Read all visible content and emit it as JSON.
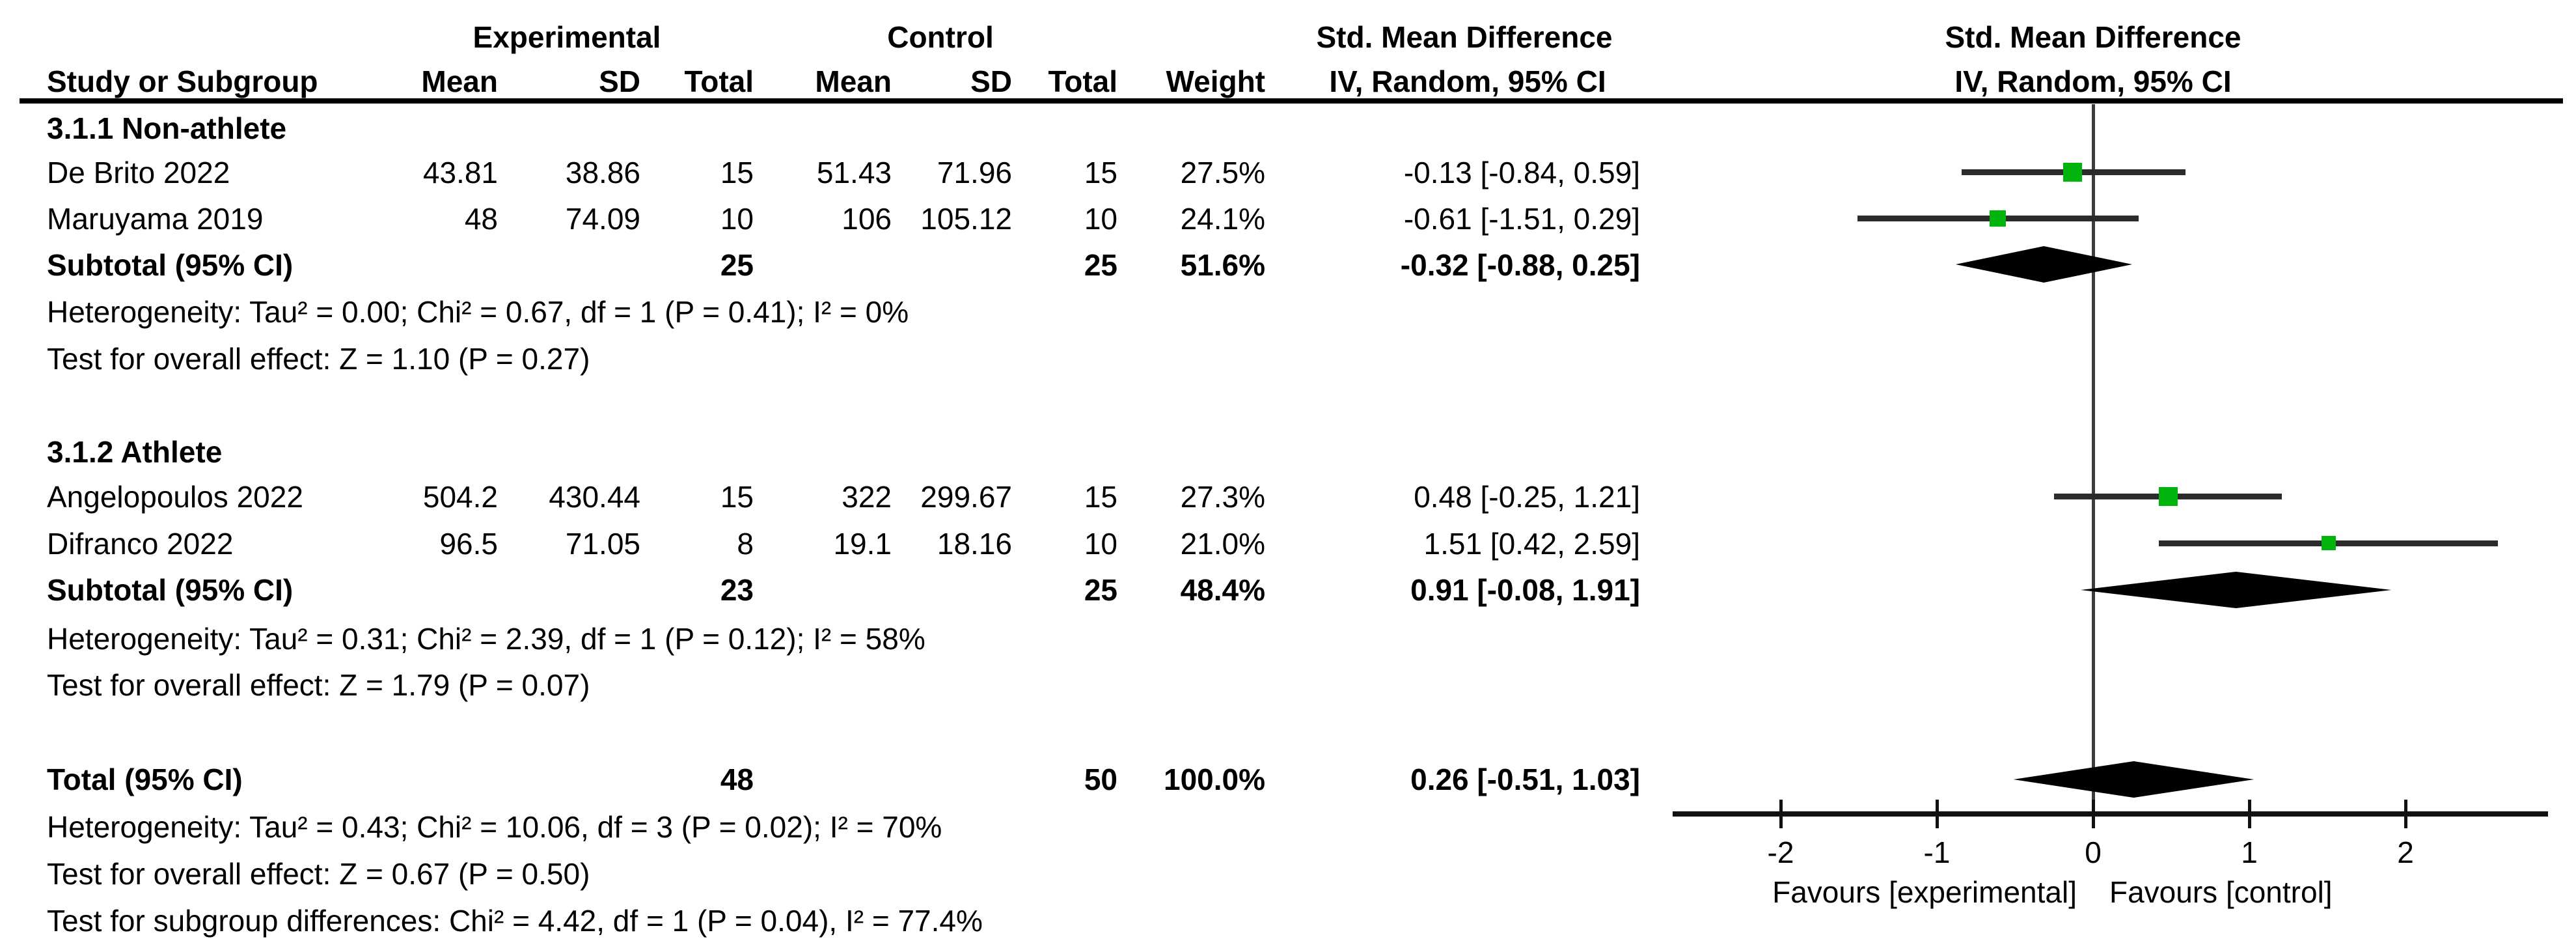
{
  "header": {
    "group_experimental": "Experimental",
    "group_control": "Control",
    "smd_left": "Std. Mean Difference",
    "smd_right": "Std. Mean Difference",
    "study": "Study or Subgroup",
    "mean1": "Mean",
    "sd1": "SD",
    "total1": "Total",
    "mean2": "Mean",
    "sd2": "SD",
    "total2": "Total",
    "weight": "Weight",
    "method_left": "IV, Random, 95% CI",
    "method_right": "IV, Random, 95% CI"
  },
  "groups": [
    {
      "title": "3.1.1 Non-athlete",
      "studies": [
        {
          "name": "De Brito 2022",
          "m1": "43.81",
          "sd1": "38.86",
          "t1": "15",
          "m2": "51.43",
          "sd2": "71.96",
          "t2": "15",
          "w": "27.5%",
          "est": "-0.13 [-0.84, 0.59]"
        },
        {
          "name": "Maruyama 2019",
          "m1": "48",
          "sd1": "74.09",
          "t1": "10",
          "m2": "106",
          "sd2": "105.12",
          "t2": "10",
          "w": "24.1%",
          "est": "-0.61 [-1.51, 0.29]"
        }
      ],
      "subtotal": {
        "label": "Subtotal (95% CI)",
        "t1": "25",
        "t2": "25",
        "w": "51.6%",
        "est": "-0.32 [-0.88, 0.25]"
      },
      "heterogeneity": "Heterogeneity: Tau² = 0.00; Chi² = 0.67, df = 1 (P = 0.41); I² = 0%",
      "overall_test": "Test for overall effect: Z = 1.10 (P = 0.27)"
    },
    {
      "title": "3.1.2 Athlete",
      "studies": [
        {
          "name": "Angelopoulos 2022",
          "m1": "504.2",
          "sd1": "430.44",
          "t1": "15",
          "m2": "322",
          "sd2": "299.67",
          "t2": "15",
          "w": "27.3%",
          "est": "0.48 [-0.25, 1.21]"
        },
        {
          "name": "Difranco 2022",
          "m1": "96.5",
          "sd1": "71.05",
          "t1": "8",
          "m2": "19.1",
          "sd2": "18.16",
          "t2": "10",
          "w": "21.0%",
          "est": "1.51 [0.42, 2.59]"
        }
      ],
      "subtotal": {
        "label": "Subtotal (95% CI)",
        "t1": "23",
        "t2": "25",
        "w": "48.4%",
        "est": "0.91 [-0.08, 1.91]"
      },
      "heterogeneity": "Heterogeneity: Tau² = 0.31; Chi² = 2.39, df = 1 (P = 0.12); I² = 58%",
      "overall_test": "Test for overall effect: Z = 1.79 (P = 0.07)"
    }
  ],
  "total": {
    "label": "Total (95% CI)",
    "t1": "48",
    "t2": "50",
    "w": "100.0%",
    "est": "0.26 [-0.51, 1.03]",
    "heterogeneity": "Heterogeneity: Tau² = 0.43; Chi² = 10.06, df = 3 (P = 0.02); I² = 70%",
    "overall_test": "Test for overall effect: Z = 0.67 (P = 0.50)",
    "subgroup_test": "Test for subgroup differences: Chi² = 4.42, df = 1 (P = 0.04), I² = 77.4%"
  },
  "axis": {
    "ticks": [
      "-2",
      "-1",
      "0",
      "1",
      "2"
    ],
    "favours_left": "Favours [experimental]",
    "favours_right": "Favours [control]"
  },
  "colors": {
    "square_green": "#00B30D",
    "line_black": "#2b2b2b"
  },
  "chart_data": {
    "type": "scatter",
    "chart_kind": "forest-plot",
    "title": "Std. Mean Difference, IV, Random, 95% CI",
    "x_axis": {
      "ticks": [
        -2,
        -1,
        0,
        1,
        2
      ],
      "range_shown": [
        -2.7,
        2.9
      ],
      "label_left": "Favours [experimental]",
      "label_right": "Favours [control]"
    },
    "points": [
      {
        "label": "De Brito 2022",
        "group": "3.1.1 Non-athlete",
        "est": -0.13,
        "ci": [
          -0.84,
          0.59
        ],
        "weight": 27.5
      },
      {
        "label": "Maruyama 2019",
        "group": "3.1.1 Non-athlete",
        "est": -0.61,
        "ci": [
          -1.51,
          0.29
        ],
        "weight": 24.1
      },
      {
        "label": "Angelopoulos 2022",
        "group": "3.1.2 Athlete",
        "est": 0.48,
        "ci": [
          -0.25,
          1.21
        ],
        "weight": 27.3
      },
      {
        "label": "Difranco 2022",
        "group": "3.1.2 Athlete",
        "est": 1.51,
        "ci": [
          0.42,
          2.59
        ],
        "weight": 21.0
      }
    ],
    "diamonds": [
      {
        "label": "Subtotal 3.1.1 Non-athlete",
        "est": -0.32,
        "ci": [
          -0.88,
          0.25
        ]
      },
      {
        "label": "Subtotal 3.1.2 Athlete",
        "est": 0.91,
        "ci": [
          -0.08,
          1.91
        ]
      },
      {
        "label": "Total",
        "est": 0.26,
        "ci": [
          -0.51,
          1.03
        ]
      }
    ]
  }
}
